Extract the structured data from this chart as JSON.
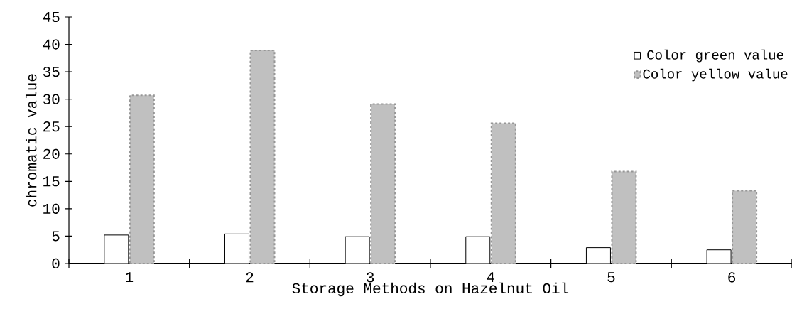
{
  "chart_data": {
    "type": "bar",
    "xlabel": "Storage Methods on Hazelnut Oil",
    "ylabel": "chromatic value",
    "categories": [
      "1",
      "2",
      "3",
      "4",
      "5",
      "6"
    ],
    "series": [
      {
        "name": "Color green value",
        "color": "#ffffff",
        "values": [
          5.2,
          5.4,
          4.9,
          4.9,
          2.9,
          2.5
        ]
      },
      {
        "name": "Color yellow value",
        "color": "#c0c0c0",
        "values": [
          30.7,
          38.9,
          29.1,
          25.6,
          16.8,
          13.3
        ]
      }
    ],
    "ylim": [
      0,
      45
    ],
    "yticks": [
      0,
      5,
      10,
      15,
      20,
      25,
      30,
      35,
      40,
      45
    ],
    "grid": false,
    "legend": "top right"
  }
}
